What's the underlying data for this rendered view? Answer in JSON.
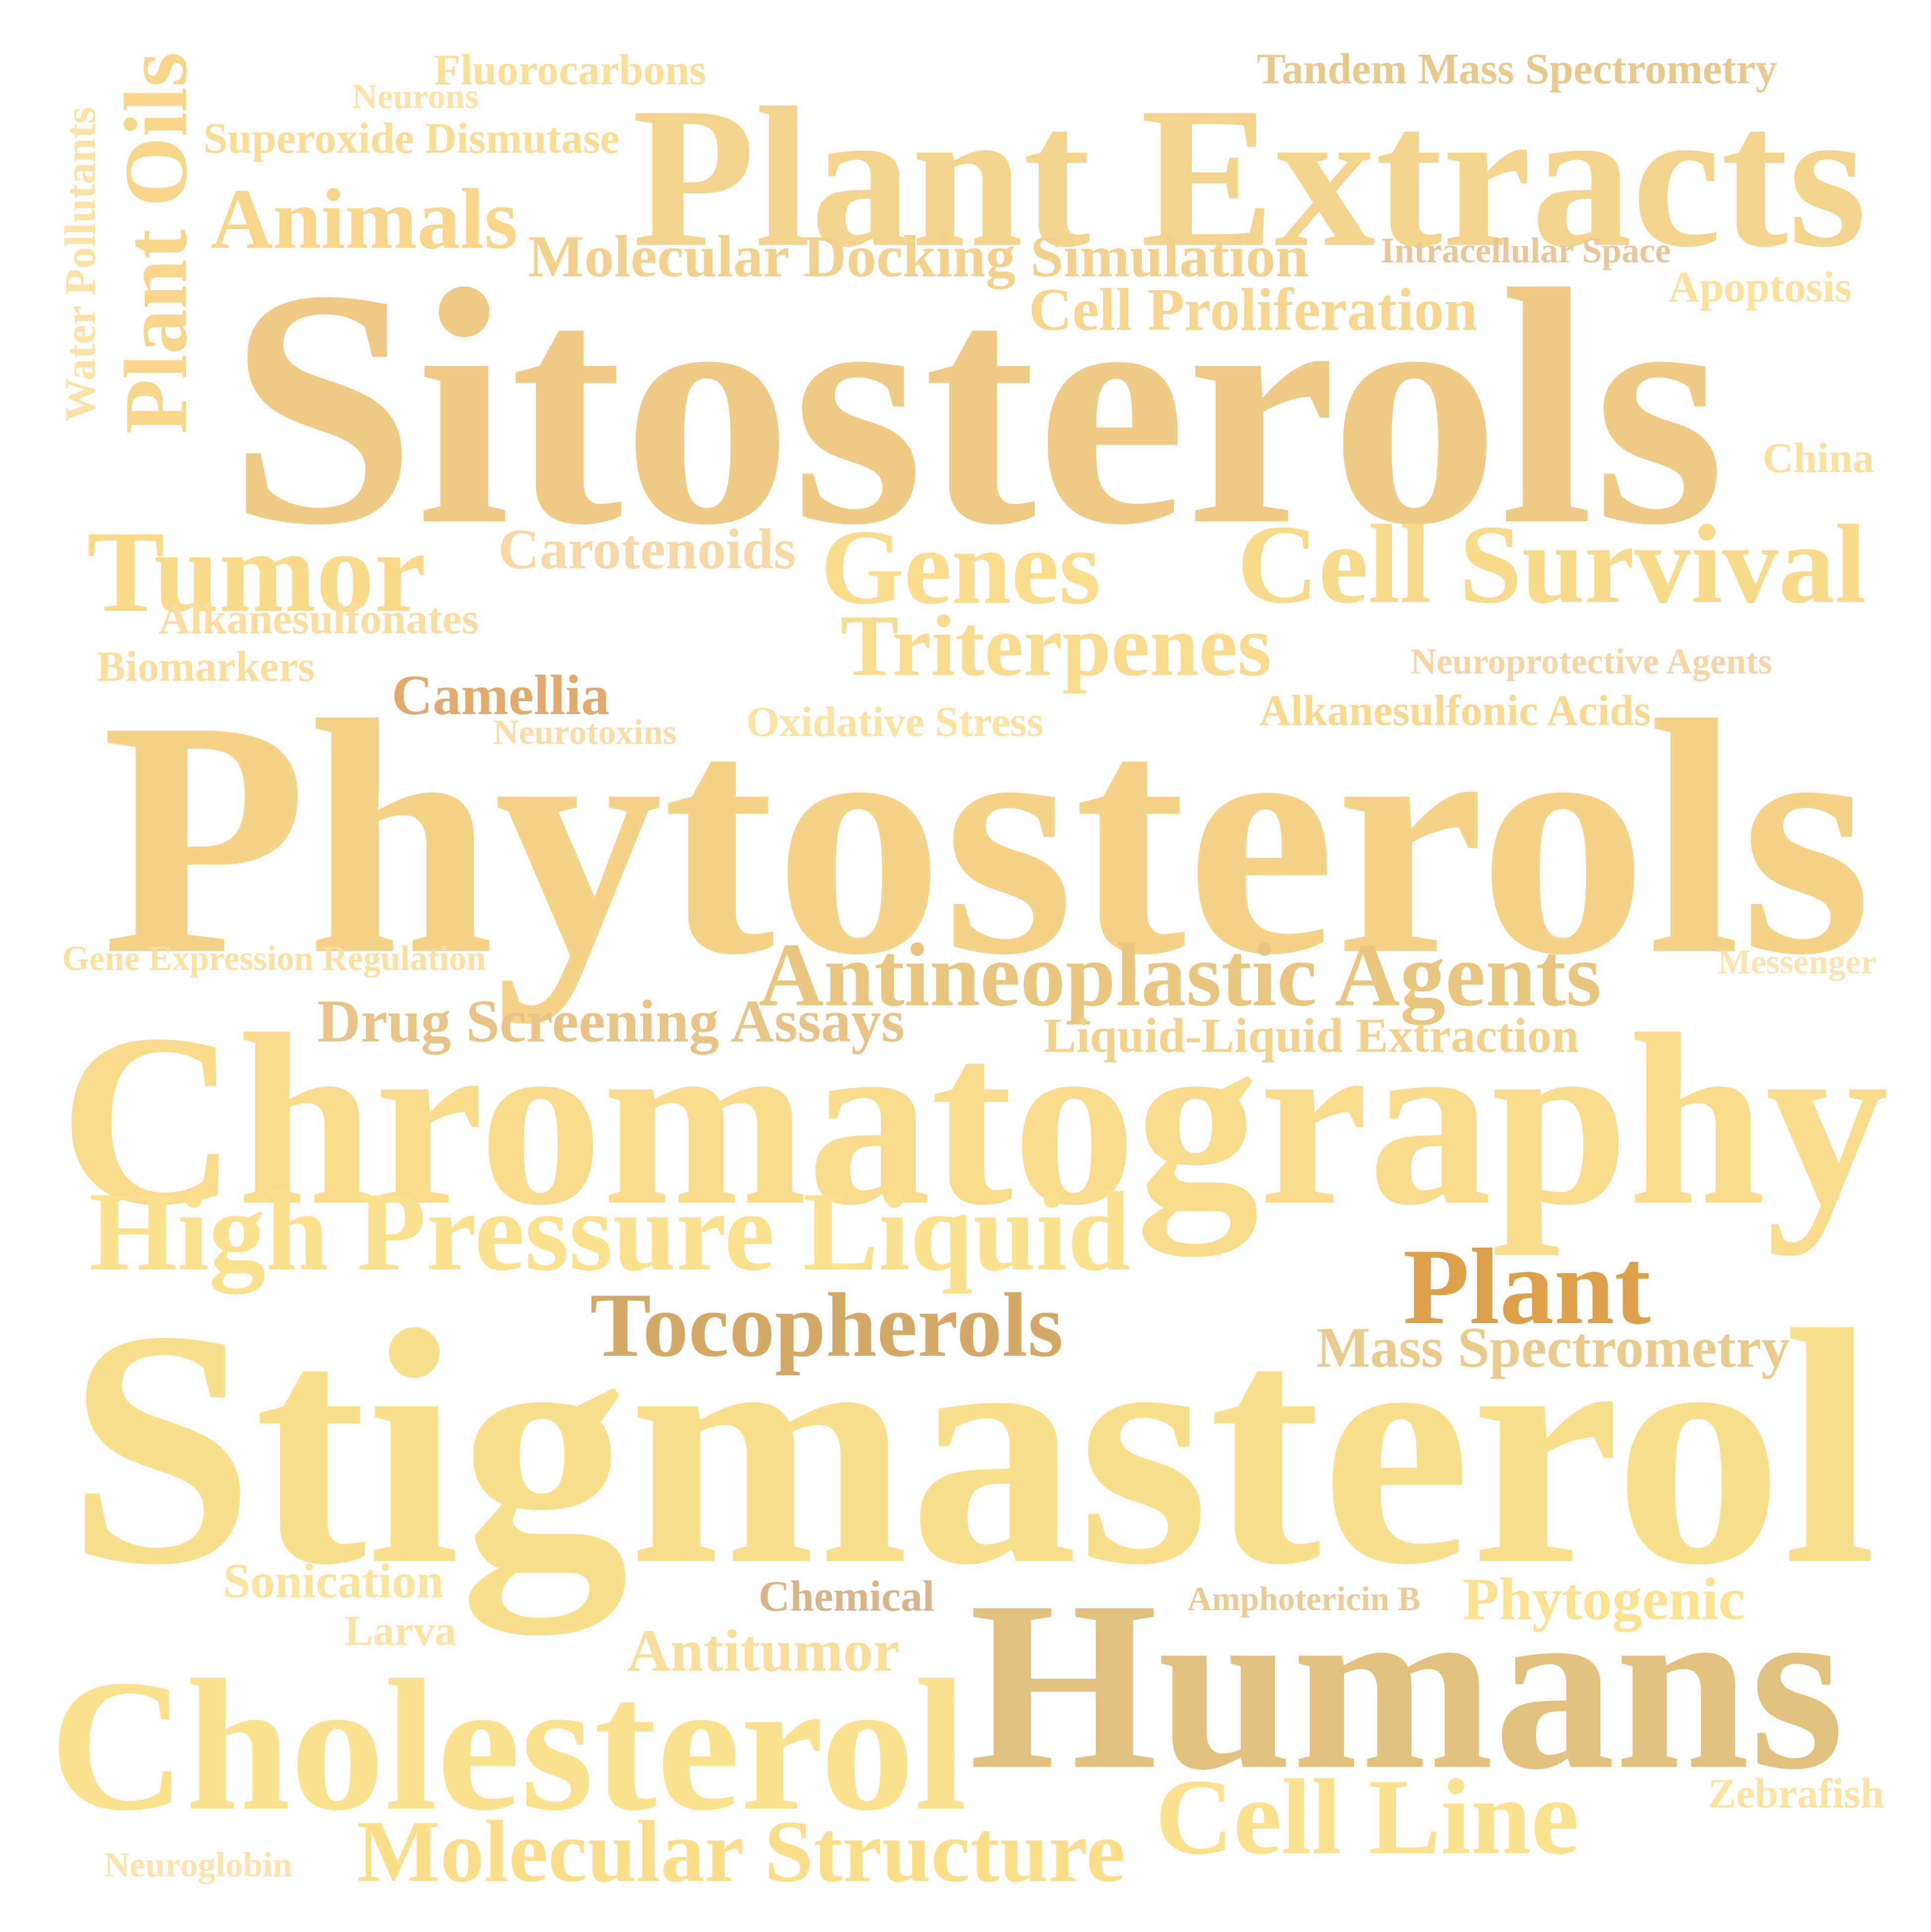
{
  "words": {
    "sitosterols": {
      "text": "Sitosterols",
      "color": "#EFCA84"
    },
    "phytosterols": {
      "text": "Phytosterols",
      "color": "#F4D288"
    },
    "chromatography": {
      "text": "Chromatography",
      "color": "#F8DB8C"
    },
    "stigmasterol": {
      "text": "Stigmasterol",
      "color": "#F9DF8B"
    },
    "plant_extracts": {
      "text": "Plant Extracts",
      "color": "#F4D38D"
    },
    "humans": {
      "text": "Humans",
      "color": "#E2C07E"
    },
    "cholesterol": {
      "text": "Cholesterol",
      "color": "#FBE08E"
    },
    "high_pressure_liquid": {
      "text": "High Pressure Liquid",
      "color": "#FBE18E"
    },
    "cell_survival": {
      "text": "Cell Survival",
      "color": "#F8DA8C"
    },
    "genes": {
      "text": "Genes",
      "color": "#F9DC8D"
    },
    "tumor": {
      "text": "Tumor",
      "color": "#F9DA8A"
    },
    "triterpenes": {
      "text": "Triterpenes",
      "color": "#F8DB8F"
    },
    "antineoplastic_agents": {
      "text": "Antineoplastic Agents",
      "color": "#E9C67F"
    },
    "plant": {
      "text": "Plant",
      "color": "#DDA04A"
    },
    "tocopherols": {
      "text": "Tocopherols",
      "color": "#D4A866"
    },
    "cell_line": {
      "text": "Cell Line",
      "color": "#FBE08E"
    },
    "molecular_structure": {
      "text": "Molecular Structure",
      "color": "#FBDE8A"
    },
    "animals": {
      "text": "Animals",
      "color": "#F7D68C"
    },
    "plant_oils": {
      "text": "Plant Oils",
      "color": "#F7D58B"
    },
    "molecular_docking": {
      "text": "Molecular Docking Simulation",
      "color": "#F2D18F"
    },
    "cell_proliferation": {
      "text": "Cell Proliferation",
      "color": "#F6D68E"
    },
    "drug_screening": {
      "text": "Drug Screening Assays",
      "color": "#E8C387"
    },
    "liquid_liquid": {
      "text": "Liquid-Liquid Extraction",
      "color": "#F2D18C"
    },
    "mass_spectrometry": {
      "text": "Mass Spectrometry",
      "color": "#EACB8E"
    },
    "carotenoids": {
      "text": "Carotenoids",
      "color": "#F5D8A5"
    },
    "camellia": {
      "text": "Camellia",
      "color": "#E3A96C"
    },
    "antitumor": {
      "text": "Antitumor",
      "color": "#F9DD9B"
    },
    "phytogenic": {
      "text": "Phytogenic",
      "color": "#FBE291"
    },
    "tandem_ms": {
      "text": "Tandem Mass Spectrometry",
      "color": "#E7C98E"
    },
    "superoxide_dismutase": {
      "text": "Superoxide Dismutase",
      "color": "#F9DD95"
    },
    "fluorocarbons": {
      "text": "Fluorocarbons",
      "color": "#F9DE98"
    },
    "alkanesulfonic_acids": {
      "text": "Alkanesulfonic Acids",
      "color": "#F6D88F"
    },
    "oxidative_stress": {
      "text": "Oxidative Stress",
      "color": "#FAE2A3"
    },
    "alkanesulfonates": {
      "text": "Alkanesulfonates",
      "color": "#F8DCA0"
    },
    "biomarkers": {
      "text": "Biomarkers",
      "color": "#F9DE9D"
    },
    "apoptosis": {
      "text": "Apoptosis",
      "color": "#FBE19E"
    },
    "china": {
      "text": "China",
      "color": "#FAE09F"
    },
    "sonication": {
      "text": "Sonication",
      "color": "#FAE29F"
    },
    "chemical": {
      "text": "Chemical",
      "color": "#D8B48A"
    },
    "larva": {
      "text": "Larva",
      "color": "#FBE3A5"
    },
    "zebrafish": {
      "text": "Zebrafish",
      "color": "#FAE3A3"
    },
    "neuroprotective": {
      "text": "Neuroprotective Agents",
      "color": "#F3D5A6"
    },
    "intracellular_space": {
      "text": "Intracellular Space",
      "color": "#E6C69A"
    },
    "neurons": {
      "text": "Neurons",
      "color": "#FAE2A8"
    },
    "water_pollutants": {
      "text": "Water Pollutants",
      "color": "#FAE2A6"
    },
    "neurotoxins": {
      "text": "Neurotoxins",
      "color": "#F7DCA8"
    },
    "gene_expression": {
      "text": "Gene Expression Regulation",
      "color": "#FAE1A3"
    },
    "messenger": {
      "text": "Messenger",
      "color": "#FBE4B4"
    },
    "amphotericin": {
      "text": "Amphotericin B",
      "color": "#EBCB98"
    },
    "neuroglobin": {
      "text": "Neuroglobin",
      "color": "#FBE3AF"
    }
  }
}
